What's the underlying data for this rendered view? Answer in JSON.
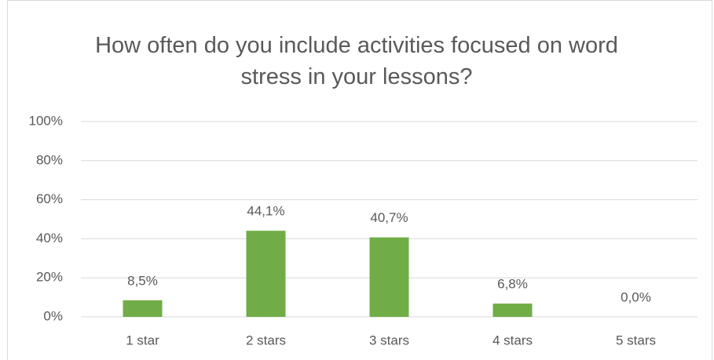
{
  "chart_data": {
    "type": "bar",
    "title": "How often do you include activities focused on word stress in your lessons?",
    "categories": [
      "1 star",
      "2 stars",
      "3 stars",
      "4 stars",
      "5 stars"
    ],
    "values": [
      8.5,
      44.1,
      40.7,
      6.8,
      0.0
    ],
    "value_labels": [
      "8,5%",
      "44,1%",
      "40,7%",
      "6,8%",
      "0,0%"
    ],
    "color": "#70ad47",
    "ylim": [
      0,
      100
    ],
    "yticks": [
      {
        "value": 0,
        "label": "0%"
      },
      {
        "value": 20,
        "label": "20%"
      },
      {
        "value": 40,
        "label": "40%"
      },
      {
        "value": 60,
        "label": "60%"
      },
      {
        "value": 80,
        "label": "80%"
      },
      {
        "value": 100,
        "label": "100%"
      }
    ],
    "grid": true
  }
}
